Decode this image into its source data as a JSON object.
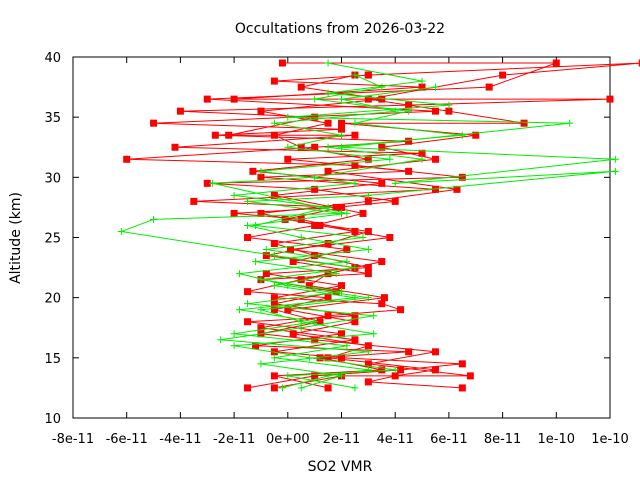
{
  "chart_data": {
    "type": "line",
    "title": "Occultations from 2026-03-22",
    "xlabel": "SO2 VMR",
    "ylabel": "Altitude (km)",
    "xlim": [
      -8e-11,
      1.2e-10
    ],
    "ylim": [
      10,
      40
    ],
    "grid": false,
    "x_ticks": [
      -8e-11,
      -6e-11,
      -4e-11,
      -2e-11,
      0,
      2e-11,
      4e-11,
      6e-11,
      8e-11,
      1e-10,
      1.2e-10
    ],
    "x_tick_labels": [
      "-8e-11",
      "-6e-11",
      "-4e-11",
      "-2e-11",
      "0e+00",
      "2e-11",
      "4e-11",
      "6e-11",
      "8e-11",
      "1e-10",
      "1e-10"
    ],
    "y_ticks": [
      10,
      15,
      20,
      25,
      30,
      35,
      40
    ],
    "y_tick_labels": [
      "10",
      "15",
      "20",
      "25",
      "30",
      "35",
      "40"
    ],
    "series": [
      {
        "name": "occultation-1",
        "color": "#ff0000",
        "marker": "square",
        "points": [
          [
            -1.5e-11,
            12.5
          ],
          [
            1e-11,
            13.5
          ],
          [
            4.2e-11,
            14.0
          ],
          [
            6.5e-11,
            14.5
          ],
          [
            2e-11,
            15.0
          ],
          [
            -5e-12,
            15.5
          ],
          [
            2.5e-11,
            16.5
          ],
          [
            -1e-11,
            17.5
          ],
          [
            1.5e-11,
            18.5
          ],
          [
            4.2e-11,
            19.0
          ],
          [
            3.5e-11,
            19.5
          ],
          [
            -5e-12,
            20.0
          ],
          [
            2e-11,
            21.0
          ],
          [
            -8e-12,
            22.0
          ],
          [
            3e-11,
            22.5
          ],
          [
            1e-11,
            23.5
          ],
          [
            -5e-12,
            24.5
          ],
          [
            2.5e-11,
            25.5
          ],
          [
            5e-12,
            26.5
          ],
          [
            -2e-11,
            27.0
          ],
          [
            1.8e-11,
            27.5
          ],
          [
            4e-11,
            28.0
          ],
          [
            1e-11,
            29.0
          ],
          [
            -3e-11,
            29.5
          ],
          [
            6.5e-11,
            30.0
          ],
          [
            2.5e-11,
            31.0
          ],
          [
            -6e-11,
            31.5
          ],
          [
            1e-11,
            32.5
          ],
          [
            4.5e-11,
            33.0
          ],
          [
            -2.7e-11,
            33.5
          ],
          [
            2e-11,
            34.0
          ],
          [
            -5e-11,
            34.5
          ],
          [
            5.5e-11,
            35.5
          ],
          [
            -3e-11,
            36.5
          ],
          [
            7.5e-11,
            37.5
          ],
          [
            1e-10,
            39.5
          ],
          [
            -2e-12,
            39.5
          ]
        ]
      },
      {
        "name": "occultation-2",
        "color": "#ff0000",
        "marker": "square",
        "points": [
          [
            6.5e-11,
            12.5
          ],
          [
            3e-11,
            13.0
          ],
          [
            4e-11,
            13.5
          ],
          [
            5.5e-11,
            14.0
          ],
          [
            1.5e-11,
            15.0
          ],
          [
            3e-11,
            16.0
          ],
          [
            2e-12,
            17.0
          ],
          [
            2.5e-11,
            18.0
          ],
          [
            0,
            19.0
          ],
          [
            3.6e-11,
            20.0
          ],
          [
            8e-12,
            21.0
          ],
          [
            1.5e-11,
            22.0
          ],
          [
            3.5e-11,
            23.0
          ],
          [
            1e-12,
            24.0
          ],
          [
            3.8e-11,
            25.0
          ],
          [
            1.2e-11,
            26.0
          ],
          [
            -1e-11,
            27.0
          ],
          [
            3e-11,
            28.0
          ],
          [
            6.3e-11,
            29.0
          ],
          [
            1.5e-11,
            30.5
          ],
          [
            5.5e-11,
            31.5
          ],
          [
            3.5e-11,
            32.5
          ],
          [
            7e-11,
            33.5
          ],
          [
            2e-11,
            34.5
          ],
          [
            8.8e-11,
            34.5
          ],
          [
            6e-11,
            35.5
          ],
          [
            3e-11,
            36.5
          ],
          [
            8e-11,
            38.5
          ],
          [
            1.32e-10,
            39.5
          ],
          [
            3e-11,
            38.5
          ]
        ]
      },
      {
        "name": "occultation-3",
        "color": "#ff0000",
        "marker": "square",
        "points": [
          [
            -5e-12,
            12.5
          ],
          [
            2e-11,
            13.5
          ],
          [
            6.8e-11,
            13.5
          ],
          [
            3e-11,
            14.5
          ],
          [
            5.5e-11,
            15.5
          ],
          [
            1e-11,
            16.5
          ],
          [
            -1e-11,
            17.0
          ],
          [
            1.2e-11,
            18.0
          ],
          [
            -5e-12,
            19.0
          ],
          [
            1.5e-11,
            20.0
          ],
          [
            -1.5e-11,
            20.5
          ],
          [
            5e-12,
            21.5
          ],
          [
            2.5e-11,
            22.5
          ],
          [
            -8e-12,
            23.5
          ],
          [
            1.5e-11,
            24.5
          ],
          [
            3e-11,
            25.5
          ],
          [
            -1e-12,
            26.5
          ],
          [
            2e-11,
            27.5
          ],
          [
            -3.5e-11,
            28.0
          ],
          [
            5.5e-11,
            29.0
          ],
          [
            -1e-11,
            30.0
          ],
          [
            4.5e-11,
            30.5
          ],
          [
            0,
            31.5
          ],
          [
            5e-11,
            32.0
          ],
          [
            -4.2e-11,
            32.5
          ],
          [
            2.5e-11,
            33.5
          ],
          [
            -2.2e-11,
            33.5
          ],
          [
            1e-11,
            35.0
          ],
          [
            -4e-11,
            35.5
          ],
          [
            4.5e-11,
            36.0
          ],
          [
            1.2e-10,
            36.5
          ],
          [
            -2e-11,
            36.5
          ],
          [
            5e-11,
            37.5
          ],
          [
            -5e-12,
            38.0
          ],
          [
            3e-11,
            38.5
          ]
        ]
      },
      {
        "name": "occultation-4",
        "color": "#ff0000",
        "marker": "square",
        "points": [
          [
            1.5e-11,
            12.5
          ],
          [
            -5e-12,
            13.5
          ],
          [
            3.5e-11,
            14.0
          ],
          [
            1.2e-11,
            15.0
          ],
          [
            4.5e-11,
            15.5
          ],
          [
            -1.2e-11,
            16.0
          ],
          [
            2e-11,
            17.0
          ],
          [
            -1.5e-11,
            18.0
          ],
          [
            2.5e-11,
            18.5
          ],
          [
            -5e-12,
            19.5
          ],
          [
            1.8e-11,
            20.5
          ],
          [
            -1e-11,
            21.5
          ],
          [
            3e-11,
            22.0
          ],
          [
            2e-12,
            23.0
          ],
          [
            2.2e-11,
            24.0
          ],
          [
            -1.5e-11,
            25.0
          ],
          [
            1e-11,
            26.0
          ],
          [
            2.8e-11,
            27.0
          ],
          [
            -5e-12,
            28.5
          ],
          [
            3.5e-11,
            29.5
          ],
          [
            -1.3e-11,
            30.5
          ],
          [
            3e-11,
            31.5
          ],
          [
            5e-12,
            32.5
          ],
          [
            -5e-12,
            33.5
          ],
          [
            1.5e-11,
            34.5
          ],
          [
            -1e-11,
            35.5
          ],
          [
            3.5e-11,
            36.5
          ],
          [
            5e-12,
            37.5
          ],
          [
            2.5e-11,
            38.5
          ]
        ]
      },
      {
        "name": "occultation-5",
        "color": "#00ee00",
        "marker": "plus",
        "points": [
          [
            5e-12,
            12.5
          ],
          [
            2e-11,
            13.5
          ],
          [
            -1e-11,
            14.5
          ],
          [
            3e-11,
            15.5
          ],
          [
            -2.5e-11,
            16.5
          ],
          [
            5e-12,
            17.5
          ],
          [
            3.2e-11,
            18.5
          ],
          [
            -1.5e-11,
            19.5
          ],
          [
            2e-11,
            20.5
          ],
          [
            -1e-11,
            21.5
          ],
          [
            2.5e-11,
            22.5
          ],
          [
            -5e-12,
            23.5
          ],
          [
            -6.2e-11,
            25.5
          ],
          [
            -5e-11,
            26.5
          ],
          [
            2e-11,
            27.0
          ],
          [
            -1.5e-11,
            28.0
          ],
          [
            3e-11,
            28.5
          ],
          [
            1.22e-10,
            30.5
          ],
          [
            4e-11,
            29.5
          ],
          [
            1.22e-10,
            31.5
          ],
          [
            2e-11,
            32.5
          ],
          [
            1.05e-10,
            34.5
          ],
          [
            0,
            35.0
          ],
          [
            6e-11,
            36.0
          ],
          [
            1.5e-11,
            37.0
          ],
          [
            5e-11,
            38.0
          ],
          [
            1.5e-11,
            39.5
          ]
        ]
      },
      {
        "name": "occultation-6",
        "color": "#00ee00",
        "marker": "plus",
        "points": [
          [
            -2e-12,
            12.5
          ],
          [
            1.5e-11,
            13.5
          ],
          [
            3e-11,
            14.0
          ],
          [
            -5e-12,
            15.0
          ],
          [
            2.2e-11,
            16.0
          ],
          [
            -2e-11,
            17.0
          ],
          [
            1e-11,
            18.0
          ],
          [
            -1.8e-11,
            19.0
          ],
          [
            2.5e-11,
            20.0
          ],
          [
            -5e-12,
            21.0
          ],
          [
            1.8e-11,
            22.0
          ],
          [
            -1.2e-11,
            23.0
          ],
          [
            3e-11,
            24.0
          ],
          [
            5e-12,
            25.0
          ],
          [
            -1.5e-11,
            26.0
          ],
          [
            2.2e-11,
            27.0
          ],
          [
            -2.8e-11,
            29.5
          ],
          [
            1e-11,
            30.0
          ],
          [
            5e-11,
            31.5
          ],
          [
            1.5e-11,
            32.5
          ],
          [
            6.5e-11,
            33.5
          ],
          [
            2.5e-11,
            34.5
          ],
          [
            4.5e-11,
            35.5
          ],
          [
            1e-11,
            36.5
          ],
          [
            3.5e-11,
            37.5
          ],
          [
            2.5e-11,
            38.5
          ]
        ]
      },
      {
        "name": "occultation-7",
        "color": "#00ee00",
        "marker": "plus",
        "points": [
          [
            2.5e-11,
            12.5
          ],
          [
            0,
            13.5
          ],
          [
            4e-11,
            14.0
          ],
          [
            8e-12,
            15.0
          ],
          [
            -2e-11,
            16.0
          ],
          [
            3.2e-11,
            17.0
          ],
          [
            5e-12,
            18.0
          ],
          [
            -1e-11,
            19.0
          ],
          [
            3e-11,
            20.0
          ],
          [
            0,
            21.0
          ],
          [
            -1.8e-11,
            22.0
          ],
          [
            2.2e-11,
            23.0
          ],
          [
            -8e-12,
            24.0
          ],
          [
            2.8e-11,
            25.0
          ],
          [
            -1.2e-11,
            26.0
          ],
          [
            1.5e-11,
            27.5
          ],
          [
            -2e-11,
            28.5
          ],
          [
            2.5e-11,
            29.5
          ],
          [
            -1e-11,
            30.5
          ],
          [
            3.8e-11,
            31.5
          ],
          [
            0,
            32.5
          ],
          [
            2e-11,
            33.5
          ],
          [
            -5e-12,
            34.5
          ],
          [
            4e-11,
            35.5
          ],
          [
            2e-11,
            36.5
          ],
          [
            5.5e-11,
            37.5
          ]
        ]
      }
    ]
  }
}
